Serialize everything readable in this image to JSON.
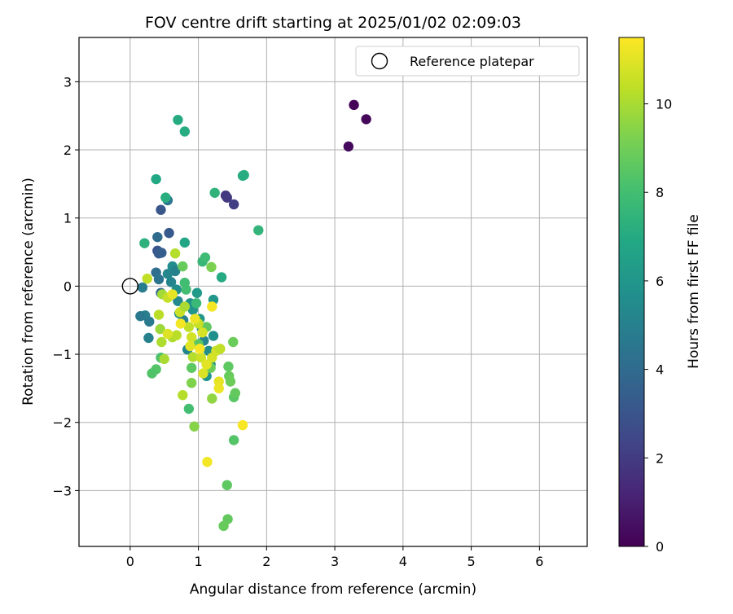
{
  "chart_data": {
    "type": "scatter",
    "title": "FOV centre drift starting at 2025/01/02 02:09:03",
    "xlabel": "Angular distance from reference (arcmin)",
    "ylabel": "Rotation from reference (arcmin)",
    "xlim": [
      -0.75,
      6.7
    ],
    "ylim": [
      -3.82,
      3.65
    ],
    "xticks": [
      0,
      1,
      2,
      3,
      4,
      5,
      6
    ],
    "yticks": [
      -3,
      -2,
      -1,
      0,
      1,
      2,
      3
    ],
    "grid": true,
    "legend": {
      "placement": "top-right",
      "entries": [
        "Reference platepar"
      ]
    },
    "reference_point": {
      "x": 0,
      "y": 0,
      "label": "Reference platepar"
    },
    "colorbar": {
      "label": "Hours from first FF file",
      "colormap": "viridis",
      "min": 0,
      "max": 11.5,
      "ticks": [
        0,
        2,
        4,
        6,
        8,
        10
      ]
    },
    "points": [
      {
        "x": 3.28,
        "y": 2.66,
        "t": 0.1
      },
      {
        "x": 3.46,
        "y": 2.45,
        "t": 0.2
      },
      {
        "x": 3.2,
        "y": 2.05,
        "t": 0.3
      },
      {
        "x": 1.4,
        "y": 1.33,
        "t": 1.8
      },
      {
        "x": 1.42,
        "y": 1.3,
        "t": 1.9
      },
      {
        "x": 1.52,
        "y": 1.2,
        "t": 2.1
      },
      {
        "x": 0.45,
        "y": 1.12,
        "t": 3.1
      },
      {
        "x": 0.57,
        "y": 0.78,
        "t": 3.2
      },
      {
        "x": 0.4,
        "y": 0.52,
        "t": 3.0
      },
      {
        "x": 0.42,
        "y": 0.48,
        "t": 3.3
      },
      {
        "x": 0.46,
        "y": 0.49,
        "t": 3.4
      },
      {
        "x": 0.4,
        "y": 0.72,
        "t": 4.0
      },
      {
        "x": 0.55,
        "y": 1.26,
        "t": 4.5
      },
      {
        "x": 0.38,
        "y": 0.2,
        "t": 4.2
      },
      {
        "x": 0.42,
        "y": 0.1,
        "t": 4.4
      },
      {
        "x": 0.45,
        "y": -0.1,
        "t": 4.0
      },
      {
        "x": 0.18,
        "y": -0.02,
        "t": 4.8
      },
      {
        "x": 0.22,
        "y": -0.43,
        "t": 4.9
      },
      {
        "x": 0.15,
        "y": -0.44,
        "t": 4.6
      },
      {
        "x": 0.28,
        "y": -0.52,
        "t": 4.7
      },
      {
        "x": 0.27,
        "y": -0.76,
        "t": 5.0
      },
      {
        "x": 0.55,
        "y": 0.18,
        "t": 5.3
      },
      {
        "x": 0.62,
        "y": 0.29,
        "t": 5.5
      },
      {
        "x": 0.66,
        "y": 0.22,
        "t": 5.0
      },
      {
        "x": 0.6,
        "y": 0.06,
        "t": 5.2
      },
      {
        "x": 0.68,
        "y": -0.05,
        "t": 5.6
      },
      {
        "x": 0.7,
        "y": -0.22,
        "t": 5.4
      },
      {
        "x": 0.72,
        "y": -0.4,
        "t": 5.8
      },
      {
        "x": 0.78,
        "y": -0.5,
        "t": 5.1
      },
      {
        "x": 0.84,
        "y": -0.93,
        "t": 5.2
      },
      {
        "x": 0.88,
        "y": -0.25,
        "t": 5.7
      },
      {
        "x": 0.92,
        "y": -0.35,
        "t": 5.9
      },
      {
        "x": 1.05,
        "y": -0.62,
        "t": 5.5
      },
      {
        "x": 1.08,
        "y": -0.8,
        "t": 5.3
      },
      {
        "x": 1.15,
        "y": -0.95,
        "t": 5.6
      },
      {
        "x": 1.18,
        "y": -1.15,
        "t": 5.8
      },
      {
        "x": 1.12,
        "y": -1.32,
        "t": 5.9
      },
      {
        "x": 1.22,
        "y": -0.73,
        "t": 5.7
      },
      {
        "x": 1.22,
        "y": -0.2,
        "t": 6.0
      },
      {
        "x": 0.98,
        "y": -0.1,
        "t": 6.2
      },
      {
        "x": 1.02,
        "y": -0.48,
        "t": 6.1
      },
      {
        "x": 0.8,
        "y": 0.64,
        "t": 6.8
      },
      {
        "x": 0.7,
        "y": 2.44,
        "t": 7.0
      },
      {
        "x": 0.8,
        "y": 2.27,
        "t": 7.1
      },
      {
        "x": 0.38,
        "y": 1.57,
        "t": 6.9
      },
      {
        "x": 0.52,
        "y": 1.3,
        "t": 7.2
      },
      {
        "x": 1.24,
        "y": 1.37,
        "t": 7.4
      },
      {
        "x": 1.67,
        "y": 1.63,
        "t": 7.3
      },
      {
        "x": 1.65,
        "y": 1.62,
        "t": 7.1
      },
      {
        "x": 1.88,
        "y": 0.82,
        "t": 7.5
      },
      {
        "x": 0.21,
        "y": 0.63,
        "t": 7.3
      },
      {
        "x": 1.34,
        "y": 0.13,
        "t": 7.0
      },
      {
        "x": 1.06,
        "y": 0.36,
        "t": 7.6
      },
      {
        "x": 1.1,
        "y": 0.42,
        "t": 7.8
      },
      {
        "x": 0.8,
        "y": 0.05,
        "t": 7.9
      },
      {
        "x": 0.82,
        "y": -0.05,
        "t": 8.0
      },
      {
        "x": 0.97,
        "y": -0.25,
        "t": 7.7
      },
      {
        "x": 0.45,
        "y": -1.05,
        "t": 8.2
      },
      {
        "x": 0.38,
        "y": -1.22,
        "t": 8.4
      },
      {
        "x": 0.32,
        "y": -1.28,
        "t": 8.3
      },
      {
        "x": 0.86,
        "y": -1.8,
        "t": 8.0
      },
      {
        "x": 0.9,
        "y": -1.2,
        "t": 8.6
      },
      {
        "x": 1.0,
        "y": -0.85,
        "t": 8.5
      },
      {
        "x": 1.12,
        "y": -0.6,
        "t": 8.7
      },
      {
        "x": 1.18,
        "y": -1.2,
        "t": 8.9
      },
      {
        "x": 1.44,
        "y": -1.18,
        "t": 8.6
      },
      {
        "x": 1.45,
        "y": -1.32,
        "t": 8.8
      },
      {
        "x": 1.47,
        "y": -1.4,
        "t": 8.9
      },
      {
        "x": 1.52,
        "y": -1.63,
        "t": 8.5
      },
      {
        "x": 1.54,
        "y": -1.57,
        "t": 8.7
      },
      {
        "x": 1.52,
        "y": -2.26,
        "t": 8.4
      },
      {
        "x": 1.42,
        "y": -2.92,
        "t": 8.6
      },
      {
        "x": 1.43,
        "y": -3.42,
        "t": 8.7
      },
      {
        "x": 1.37,
        "y": -3.52,
        "t": 8.8
      },
      {
        "x": 1.51,
        "y": -0.82,
        "t": 8.9
      },
      {
        "x": 0.77,
        "y": 0.29,
        "t": 8.8
      },
      {
        "x": 1.19,
        "y": 0.28,
        "t": 9.2
      },
      {
        "x": 0.9,
        "y": -1.42,
        "t": 9.3
      },
      {
        "x": 0.94,
        "y": -2.06,
        "t": 9.4
      },
      {
        "x": 1.2,
        "y": -1.65,
        "t": 9.6
      },
      {
        "x": 0.77,
        "y": -1.6,
        "t": 10.2
      },
      {
        "x": 0.5,
        "y": -1.07,
        "t": 10.0
      },
      {
        "x": 0.46,
        "y": -0.82,
        "t": 10.1
      },
      {
        "x": 0.44,
        "y": -0.63,
        "t": 9.8
      },
      {
        "x": 0.42,
        "y": -0.42,
        "t": 10.3
      },
      {
        "x": 0.25,
        "y": 0.11,
        "t": 10.4
      },
      {
        "x": 0.66,
        "y": 0.48,
        "t": 10.2
      },
      {
        "x": 0.47,
        "y": -0.12,
        "t": 9.9
      },
      {
        "x": 0.55,
        "y": -0.17,
        "t": 10.5
      },
      {
        "x": 0.62,
        "y": -0.75,
        "t": 10.1
      },
      {
        "x": 0.68,
        "y": -0.72,
        "t": 10.3
      },
      {
        "x": 0.73,
        "y": -0.38,
        "t": 10.6
      },
      {
        "x": 0.8,
        "y": -0.3,
        "t": 10.0
      },
      {
        "x": 0.86,
        "y": -0.6,
        "t": 10.4
      },
      {
        "x": 0.9,
        "y": -0.75,
        "t": 10.7
      },
      {
        "x": 0.92,
        "y": -1.04,
        "t": 10.2
      },
      {
        "x": 1.0,
        "y": -0.55,
        "t": 10.5
      },
      {
        "x": 1.06,
        "y": -0.68,
        "t": 10.8
      },
      {
        "x": 1.04,
        "y": -1.05,
        "t": 10.6
      },
      {
        "x": 1.07,
        "y": -1.28,
        "t": 10.9
      },
      {
        "x": 1.12,
        "y": -1.15,
        "t": 11.0
      },
      {
        "x": 1.2,
        "y": -1.05,
        "t": 10.8
      },
      {
        "x": 1.26,
        "y": -0.95,
        "t": 10.7
      },
      {
        "x": 1.32,
        "y": -0.92,
        "t": 10.4
      },
      {
        "x": 1.3,
        "y": -1.4,
        "t": 11.1
      },
      {
        "x": 1.3,
        "y": -1.5,
        "t": 11.2
      },
      {
        "x": 1.13,
        "y": -2.58,
        "t": 11.3
      },
      {
        "x": 1.65,
        "y": -2.04,
        "t": 11.4
      },
      {
        "x": 1.2,
        "y": -0.3,
        "t": 11.3
      },
      {
        "x": 0.95,
        "y": -0.48,
        "t": 11.2
      },
      {
        "x": 0.62,
        "y": -0.12,
        "t": 11.1
      },
      {
        "x": 0.74,
        "y": -0.55,
        "t": 11.3
      },
      {
        "x": 0.88,
        "y": -0.88,
        "t": 11.0
      },
      {
        "x": 1.02,
        "y": -0.92,
        "t": 11.4
      },
      {
        "x": 0.55,
        "y": -0.7,
        "t": 10.9
      }
    ]
  }
}
